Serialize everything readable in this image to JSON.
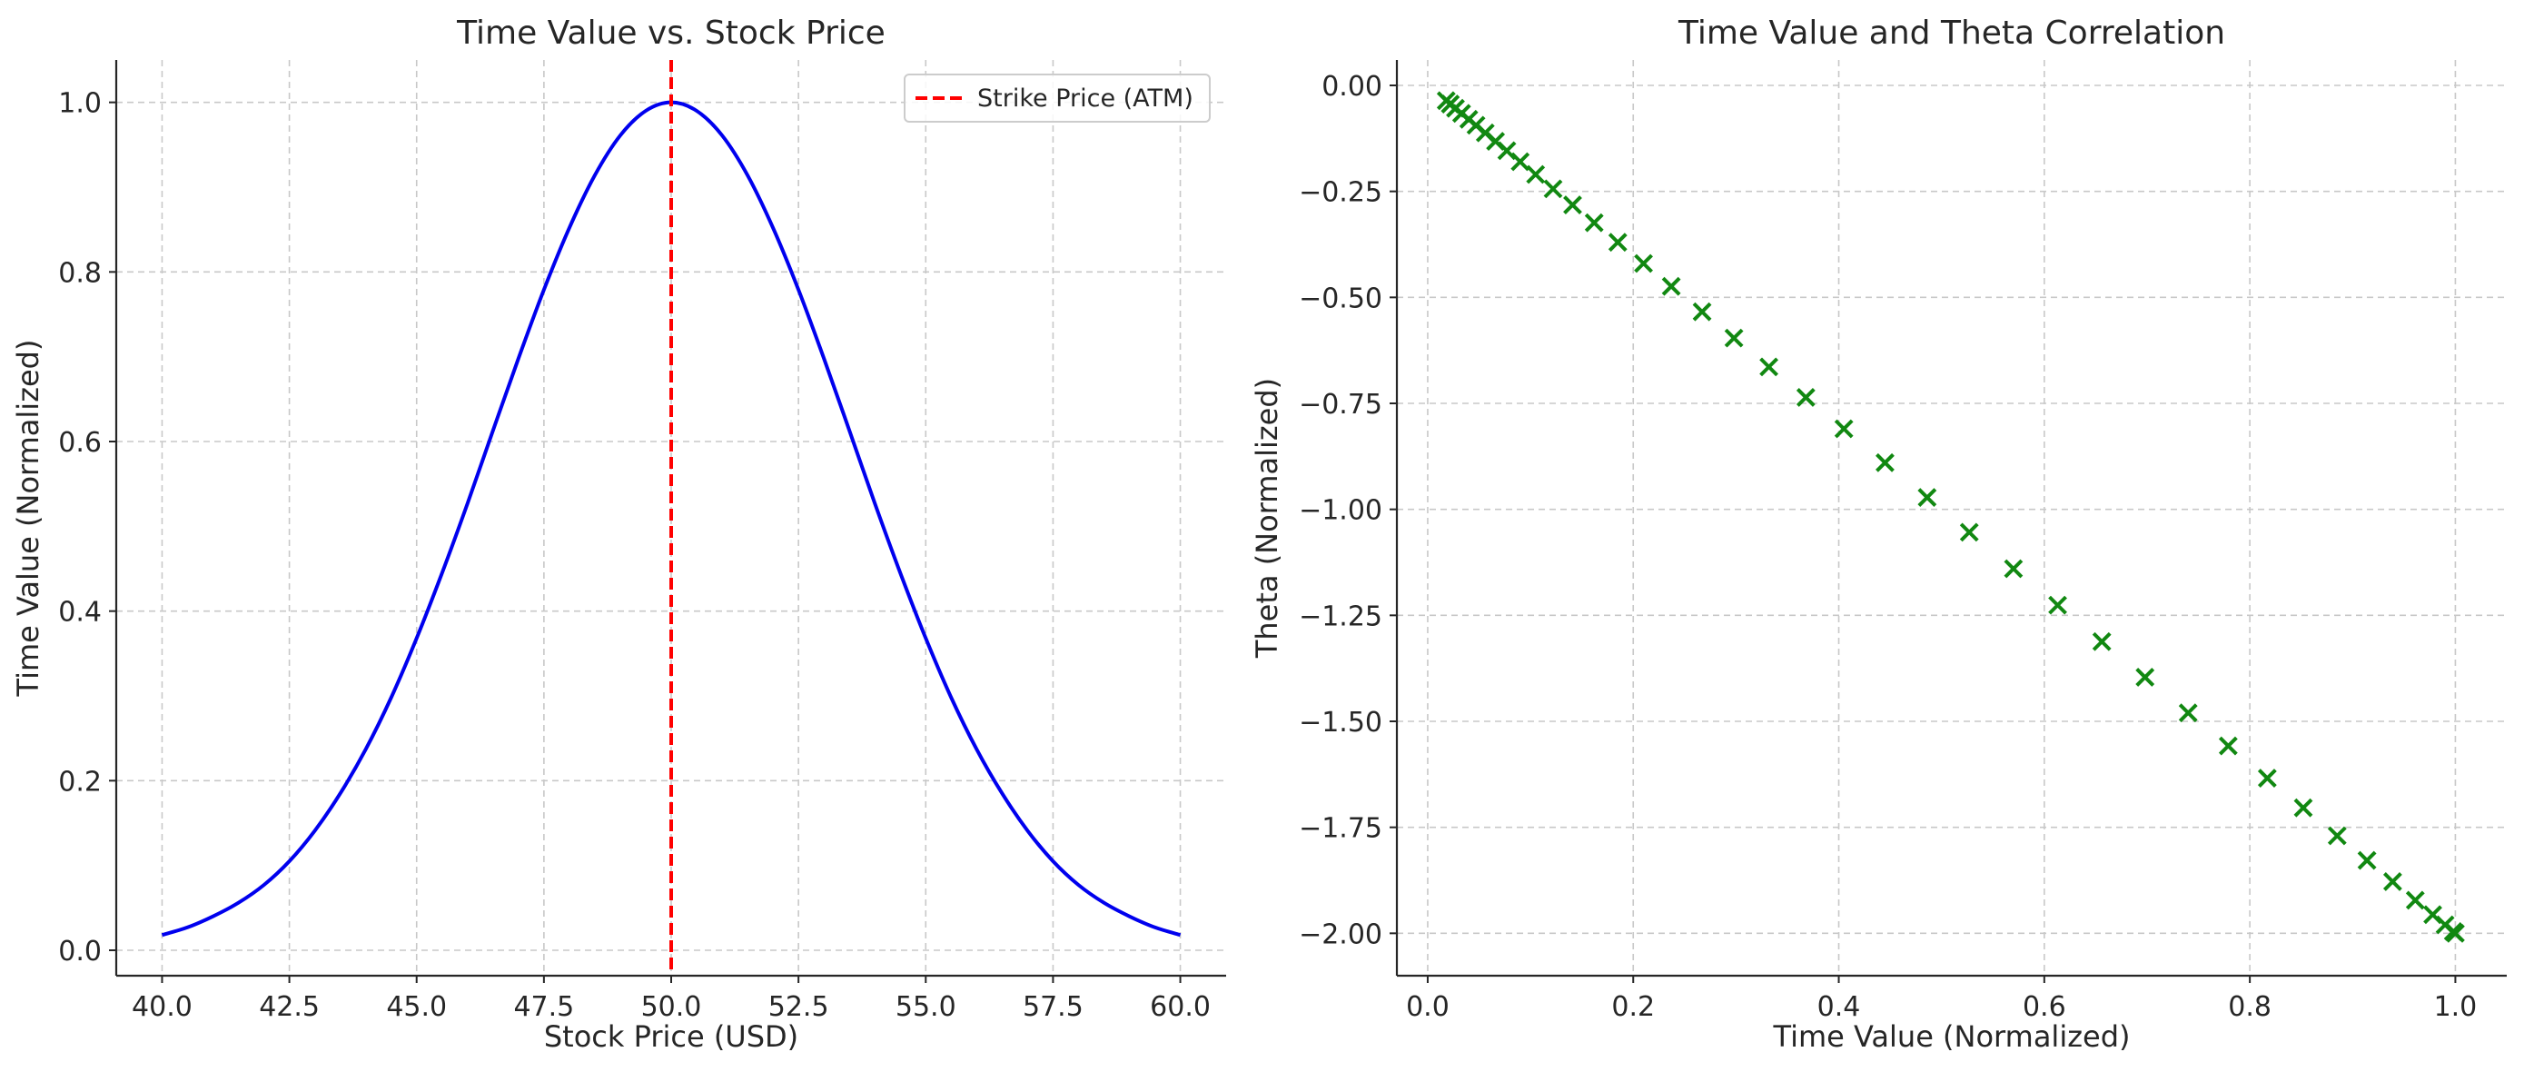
{
  "chart_data": [
    {
      "type": "line",
      "title": "Time Value vs. Stock Price",
      "xlabel": "Stock Price (USD)",
      "ylabel": "Time Value (Normalized)",
      "xlim": [
        39.1,
        60.9
      ],
      "ylim": [
        -0.03,
        1.05
      ],
      "xticks": [
        40.0,
        42.5,
        45.0,
        47.5,
        50.0,
        52.5,
        55.0,
        57.5,
        60.0
      ],
      "xtick_labels": [
        "40.0",
        "42.5",
        "45.0",
        "47.5",
        "50.0",
        "52.5",
        "55.0",
        "57.5",
        "60.0"
      ],
      "yticks": [
        0.0,
        0.2,
        0.4,
        0.6,
        0.8,
        1.0
      ],
      "ytick_labels": [
        "0.0",
        "0.2",
        "0.4",
        "0.6",
        "0.8",
        "1.0"
      ],
      "grid": true,
      "legend": {
        "placement": "upper-right",
        "entries": [
          "Strike Price (ATM)"
        ]
      },
      "series": [
        {
          "color": "#0000ee",
          "style": "solid",
          "x": [
            40.0,
            40.5,
            41.0,
            41.5,
            42.0,
            42.5,
            43.0,
            43.5,
            44.0,
            44.5,
            45.0,
            45.5,
            46.0,
            46.5,
            47.0,
            47.5,
            48.0,
            48.5,
            49.0,
            49.5,
            50.0,
            50.5,
            51.0,
            51.5,
            52.0,
            52.5,
            53.0,
            53.5,
            54.0,
            54.5,
            55.0,
            55.5,
            56.0,
            56.5,
            57.0,
            57.5,
            58.0,
            58.5,
            59.0,
            59.5,
            60.0
          ],
          "y": [
            0.018,
            0.027,
            0.04,
            0.056,
            0.077,
            0.105,
            0.141,
            0.185,
            0.237,
            0.298,
            0.368,
            0.445,
            0.527,
            0.613,
            0.698,
            0.779,
            0.852,
            0.914,
            0.961,
            0.99,
            1.0,
            0.99,
            0.961,
            0.914,
            0.852,
            0.779,
            0.698,
            0.613,
            0.527,
            0.445,
            0.368,
            0.298,
            0.237,
            0.185,
            0.141,
            0.105,
            0.077,
            0.056,
            0.04,
            0.027,
            0.018
          ]
        },
        {
          "name": "Strike Price (ATM)",
          "color": "#ff0000",
          "style": "dashed",
          "vertical_line_x": 50.0
        }
      ]
    },
    {
      "type": "scatter",
      "title": "Time Value and Theta Correlation",
      "xlabel": "Time Value (Normalized)",
      "ylabel": "Theta (Normalized)",
      "xlim": [
        -0.03,
        1.05
      ],
      "ylim": [
        -2.1,
        0.06
      ],
      "xticks": [
        0.0,
        0.2,
        0.4,
        0.6,
        0.8,
        1.0
      ],
      "xtick_labels": [
        "0.0",
        "0.2",
        "0.4",
        "0.6",
        "0.8",
        "1.0"
      ],
      "yticks": [
        0.0,
        -0.25,
        -0.5,
        -0.75,
        -1.0,
        -1.25,
        -1.5,
        -1.75,
        -2.0
      ],
      "ytick_labels": [
        "0.00",
        "−0.25",
        "−0.50",
        "−0.75",
        "−1.00",
        "−1.25",
        "−1.50",
        "−1.75",
        "−2.00"
      ],
      "grid": true,
      "series": [
        {
          "color": "#118811",
          "marker": "x",
          "x": [
            0.018,
            0.022,
            0.027,
            0.033,
            0.04,
            0.047,
            0.056,
            0.066,
            0.077,
            0.09,
            0.105,
            0.122,
            0.141,
            0.162,
            0.185,
            0.21,
            0.237,
            0.267,
            0.298,
            0.332,
            0.368,
            0.405,
            0.445,
            0.486,
            0.527,
            0.57,
            0.613,
            0.656,
            0.698,
            0.74,
            0.779,
            0.817,
            0.852,
            0.885,
            0.914,
            0.939,
            0.961,
            0.978,
            0.99,
            0.998,
            1.0
          ],
          "y": [
            -0.036,
            -0.044,
            -0.054,
            -0.066,
            -0.08,
            -0.094,
            -0.112,
            -0.132,
            -0.154,
            -0.18,
            -0.21,
            -0.244,
            -0.282,
            -0.324,
            -0.37,
            -0.42,
            -0.474,
            -0.534,
            -0.596,
            -0.664,
            -0.736,
            -0.81,
            -0.89,
            -0.972,
            -1.054,
            -1.14,
            -1.226,
            -1.312,
            -1.396,
            -1.48,
            -1.558,
            -1.634,
            -1.704,
            -1.77,
            -1.828,
            -1.878,
            -1.922,
            -1.956,
            -1.98,
            -1.996,
            -2.0
          ]
        }
      ]
    }
  ]
}
